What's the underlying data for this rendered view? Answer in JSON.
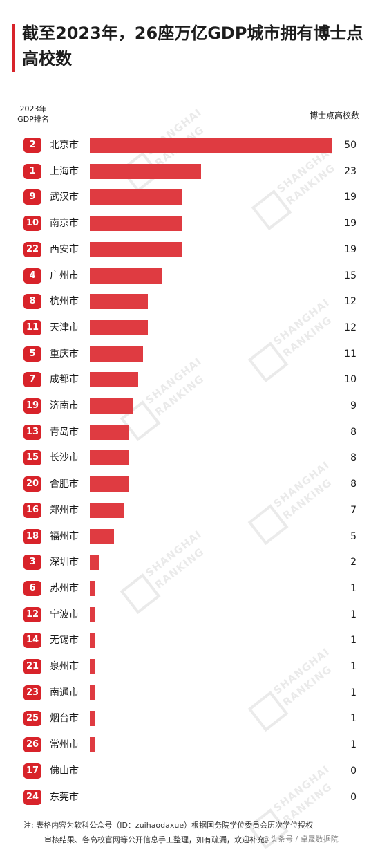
{
  "title": "截至2023年，26座万亿GDP城市拥有博士点高校数",
  "header": {
    "left": "2023年\nGDP排名",
    "right": "博士点高校数"
  },
  "watermark": {
    "line1": "SHANGHAI",
    "line2": "RANKING"
  },
  "chart_data": {
    "type": "bar",
    "orientation": "horizontal",
    "title": "截至2023年，26座万亿GDP城市拥有博士点高校数",
    "xlabel": "博士点高校数",
    "ylabel": "2023年GDP排名",
    "xlim": [
      0,
      50
    ],
    "categories": [
      "北京市",
      "上海市",
      "武汉市",
      "南京市",
      "西安市",
      "广州市",
      "杭州市",
      "天津市",
      "重庆市",
      "成都市",
      "济南市",
      "青岛市",
      "长沙市",
      "合肥市",
      "郑州市",
      "福州市",
      "深圳市",
      "苏州市",
      "宁波市",
      "无锡市",
      "泉州市",
      "南通市",
      "烟台市",
      "常州市",
      "佛山市",
      "东莞市"
    ],
    "ranks": [
      2,
      1,
      9,
      10,
      22,
      4,
      8,
      11,
      5,
      7,
      19,
      13,
      15,
      20,
      16,
      18,
      3,
      6,
      12,
      14,
      21,
      23,
      25,
      26,
      17,
      24
    ],
    "values": [
      50,
      23,
      19,
      19,
      19,
      15,
      12,
      12,
      11,
      10,
      9,
      8,
      8,
      8,
      7,
      5,
      2,
      1,
      1,
      1,
      1,
      1,
      1,
      1,
      0,
      0
    ],
    "bar_color": "#df3b41",
    "badge_color": "#d8232a"
  },
  "footnote": {
    "line1": "注:  表格内容为软科公众号（ID：zuihaodaxue）根据国务院学位委员会历次学位授权",
    "line2": "审核结果、各高校官网等公开信息手工整理，如有疏漏，欢迎补充。",
    "credit": "@头条号 / 卓晟数据院"
  }
}
